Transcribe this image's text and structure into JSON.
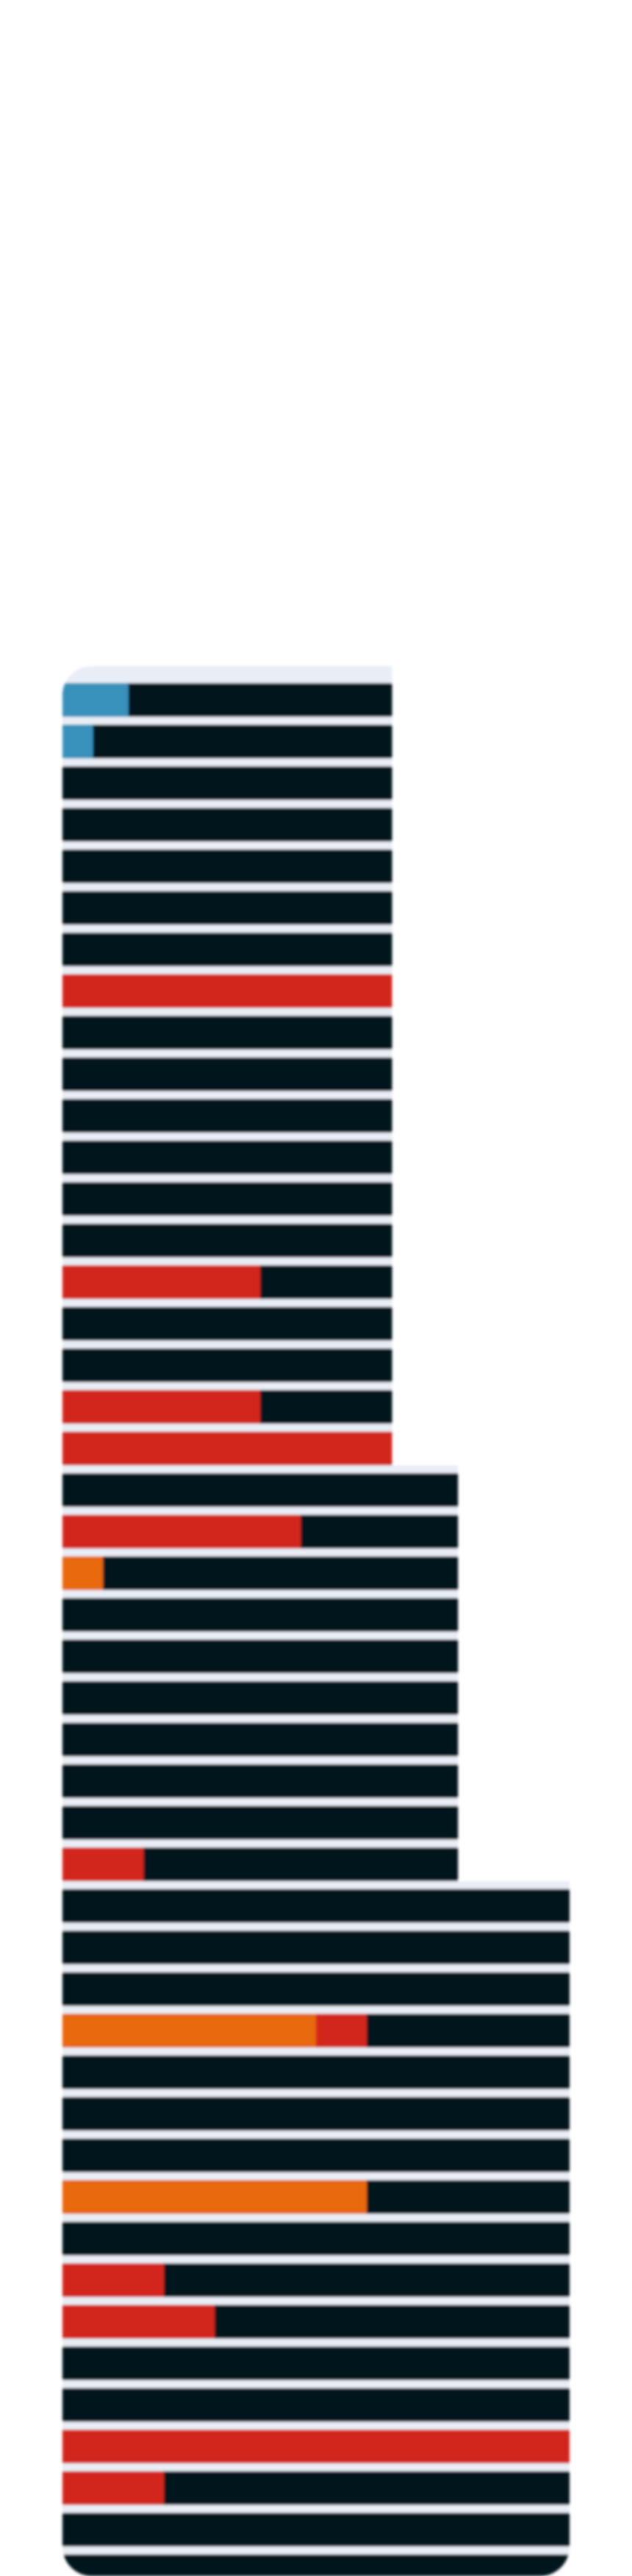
{
  "colors": {
    "background": "#ffffff",
    "track": "#06141b",
    "separator": "#e9edf5",
    "teal": "#3791bb",
    "red": "#d2271d",
    "orange": "#e7670c"
  },
  "chart_data": {
    "type": "bar",
    "orientation": "horizontal",
    "stacked": true,
    "title": "",
    "xlabel": "",
    "ylabel": "",
    "grid": false,
    "legend": "none",
    "rows": [
      {
        "max": 65,
        "segments": [
          {
            "value": 13,
            "color": "teal"
          }
        ]
      },
      {
        "max": 65,
        "segments": [
          {
            "value": 6,
            "color": "teal"
          }
        ]
      },
      {
        "max": 65,
        "segments": []
      },
      {
        "max": 65,
        "segments": []
      },
      {
        "max": 65,
        "segments": []
      },
      {
        "max": 65,
        "segments": []
      },
      {
        "max": 65,
        "segments": []
      },
      {
        "max": 65,
        "segments": [
          {
            "value": 65,
            "color": "red"
          }
        ]
      },
      {
        "max": 65,
        "segments": []
      },
      {
        "max": 65,
        "segments": []
      },
      {
        "max": 65,
        "segments": []
      },
      {
        "max": 65,
        "segments": []
      },
      {
        "max": 65,
        "segments": []
      },
      {
        "max": 65,
        "segments": []
      },
      {
        "max": 65,
        "segments": [
          {
            "value": 39,
            "color": "red"
          }
        ]
      },
      {
        "max": 65,
        "segments": []
      },
      {
        "max": 65,
        "segments": []
      },
      {
        "max": 65,
        "segments": [
          {
            "value": 39,
            "color": "red"
          }
        ]
      },
      {
        "max": 65,
        "segments": [
          {
            "value": 65,
            "color": "red"
          }
        ]
      },
      {
        "max": 78,
        "segments": []
      },
      {
        "max": 78,
        "segments": [
          {
            "value": 47,
            "color": "red"
          }
        ]
      },
      {
        "max": 78,
        "segments": [
          {
            "value": 8,
            "color": "orange"
          }
        ]
      },
      {
        "max": 78,
        "segments": []
      },
      {
        "max": 78,
        "segments": []
      },
      {
        "max": 78,
        "segments": []
      },
      {
        "max": 78,
        "segments": []
      },
      {
        "max": 78,
        "segments": []
      },
      {
        "max": 78,
        "segments": []
      },
      {
        "max": 78,
        "segments": [
          {
            "value": 16,
            "color": "red"
          }
        ]
      },
      {
        "max": 100,
        "segments": []
      },
      {
        "max": 100,
        "segments": []
      },
      {
        "max": 100,
        "segments": []
      },
      {
        "max": 100,
        "segments": [
          {
            "value": 50,
            "color": "orange"
          },
          {
            "value": 10,
            "color": "red"
          }
        ]
      },
      {
        "max": 100,
        "segments": []
      },
      {
        "max": 100,
        "segments": []
      },
      {
        "max": 100,
        "segments": []
      },
      {
        "max": 100,
        "segments": [
          {
            "value": 60,
            "color": "orange"
          }
        ]
      },
      {
        "max": 100,
        "segments": []
      },
      {
        "max": 100,
        "segments": [
          {
            "value": 20,
            "color": "red"
          }
        ]
      },
      {
        "max": 100,
        "segments": [
          {
            "value": 30,
            "color": "red"
          }
        ]
      },
      {
        "max": 100,
        "segments": []
      },
      {
        "max": 100,
        "segments": []
      },
      {
        "max": 100,
        "segments": [
          {
            "value": 100,
            "color": "red"
          }
        ]
      },
      {
        "max": 100,
        "segments": [
          {
            "value": 20,
            "color": "red"
          }
        ]
      },
      {
        "max": 100,
        "segments": []
      },
      {
        "max": 100,
        "segments": []
      }
    ]
  }
}
